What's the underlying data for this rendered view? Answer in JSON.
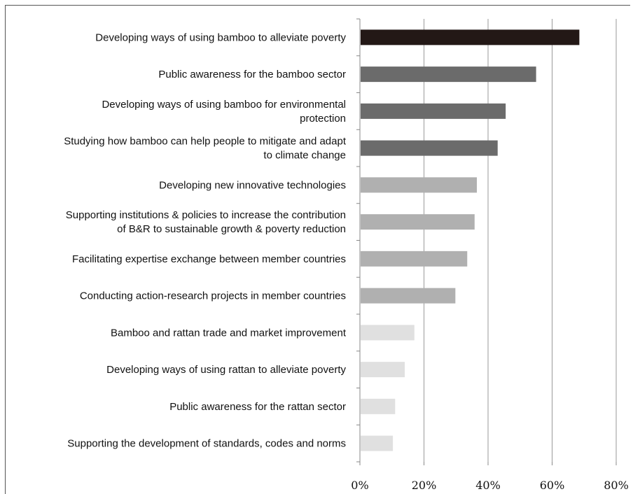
{
  "chart_data": {
    "type": "bar",
    "orientation": "horizontal",
    "categories": [
      [
        "Developing ways of using bamboo to alleviate poverty"
      ],
      [
        "Public awareness for the bamboo sector"
      ],
      [
        "Developing ways of using bamboo for environmental",
        "protection"
      ],
      [
        "Studying how bamboo can help people to mitigate and adapt",
        "to climate change"
      ],
      [
        "Developing new innovative technologies"
      ],
      [
        "Supporting institutions & policies to increase the contribution",
        "of B&R to sustainable growth & poverty reduction"
      ],
      [
        "Facilitating expertise exchange between member countries"
      ],
      [
        "Conducting action-research projects in member countries"
      ],
      [
        "Bamboo and rattan trade and market improvement"
      ],
      [
        "Developing ways of using rattan to alleviate poverty"
      ],
      [
        "Public awareness for the rattan sector"
      ],
      [
        "Supporting the development of standards, codes and norms"
      ]
    ],
    "values": [
      68.5,
      55,
      45.5,
      43,
      36.5,
      35.8,
      33.5,
      29.8,
      17,
      14,
      11,
      10.3
    ],
    "bar_colors": [
      "#231816",
      "#6b6b6b",
      "#6b6b6b",
      "#6b6b6b",
      "#b0b0b0",
      "#b0b0b0",
      "#b0b0b0",
      "#b0b0b0",
      "#e0e0e0",
      "#e0e0e0",
      "#e0e0e0",
      "#e0e0e0"
    ],
    "xlim": [
      0,
      80
    ],
    "xticks": [
      "0%",
      "20%",
      "40%",
      "60%",
      "80%"
    ],
    "xtick_values": [
      0,
      20,
      40,
      60,
      80
    ],
    "grid": true,
    "title": "",
    "xlabel": "",
    "ylabel": ""
  }
}
